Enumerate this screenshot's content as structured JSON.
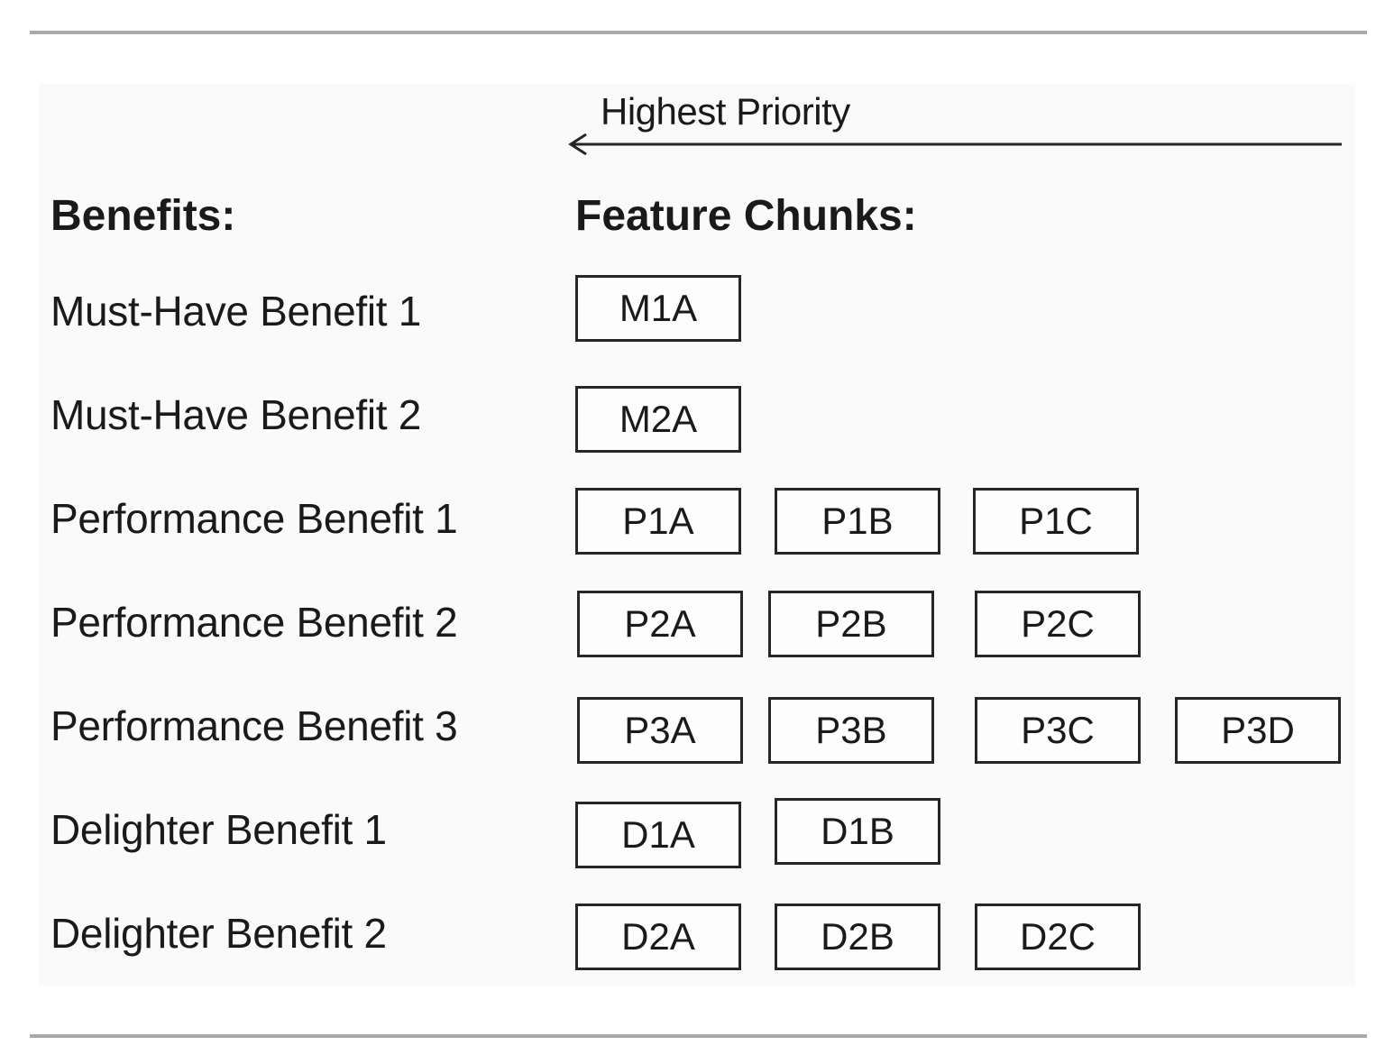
{
  "priority": {
    "label": "Highest Priority"
  },
  "headings": {
    "benefits": "Benefits:",
    "chunks": "Feature Chunks:"
  },
  "rows": [
    {
      "benefit": "Must-Have Benefit 1",
      "chunks": [
        "M1A"
      ]
    },
    {
      "benefit": "Must-Have Benefit 2",
      "chunks": [
        "M2A"
      ]
    },
    {
      "benefit": "Performance Benefit 1",
      "chunks": [
        "P1A",
        "P1B",
        "P1C"
      ]
    },
    {
      "benefit": "Performance Benefit 2",
      "chunks": [
        "P2A",
        "P2B",
        "P2C"
      ]
    },
    {
      "benefit": "Performance Benefit 3",
      "chunks": [
        "P3A",
        "P3B",
        "P3C",
        "P3D"
      ]
    },
    {
      "benefit": "Delighter Benefit 1",
      "chunks": [
        "D1A",
        "D1B"
      ]
    },
    {
      "benefit": "Delighter Benefit 2",
      "chunks": [
        "D2A",
        "D2B",
        "D2C"
      ]
    }
  ]
}
